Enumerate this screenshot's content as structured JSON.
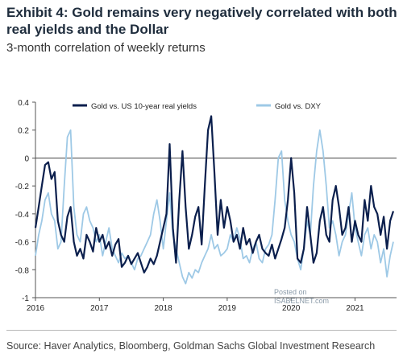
{
  "header": {
    "title": "Exhibit 4: Gold remains very negatively correlated with both real yields and the Dollar",
    "subtitle": "3-month correlation of weekly returns"
  },
  "footer": {
    "source": "Source: Haver Analytics, Bloomberg, Goldman Sachs Global Investment Research"
  },
  "watermark": {
    "line1": "Posted on",
    "line2": "ISABELNET.com"
  },
  "chart_data": {
    "type": "line",
    "title": "",
    "xlabel": "",
    "ylabel": "",
    "xlim": [
      2016.0,
      2021.65
    ],
    "ylim": [
      -1.0,
      0.4
    ],
    "yticks": [
      -1,
      -0.8,
      -0.6,
      -0.4,
      -0.2,
      0,
      0.2,
      0.4
    ],
    "ytick_labels": [
      "-1",
      "-0.8",
      "-0.6",
      "-0.4",
      "-0.2",
      "0",
      "0.2",
      "0.4"
    ],
    "xticks": [
      2016,
      2017,
      2018,
      2019,
      2020,
      2021
    ],
    "xtick_labels": [
      "2016",
      "2017",
      "2018",
      "2019",
      "2020",
      "2021"
    ],
    "zero_line": true,
    "grid": false,
    "legend_position": "top",
    "series": [
      {
        "name": "Gold vs. US 10-year real yields",
        "color": "#0b1f4d",
        "x": [
          2016.0,
          2016.05,
          2016.1,
          2016.15,
          2016.2,
          2016.25,
          2016.3,
          2016.35,
          2016.4,
          2016.45,
          2016.5,
          2016.55,
          2016.6,
          2016.65,
          2016.7,
          2016.75,
          2016.8,
          2016.85,
          2016.9,
          2016.95,
          2017.0,
          2017.05,
          2017.1,
          2017.15,
          2017.2,
          2017.25,
          2017.3,
          2017.35,
          2017.4,
          2017.45,
          2017.5,
          2017.55,
          2017.6,
          2017.65,
          2017.7,
          2017.75,
          2017.8,
          2017.85,
          2017.9,
          2017.95,
          2018.0,
          2018.05,
          2018.1,
          2018.15,
          2018.2,
          2018.25,
          2018.3,
          2018.35,
          2018.4,
          2018.45,
          2018.5,
          2018.55,
          2018.6,
          2018.65,
          2018.7,
          2018.75,
          2018.8,
          2018.85,
          2018.9,
          2018.95,
          2019.0,
          2019.05,
          2019.1,
          2019.15,
          2019.2,
          2019.25,
          2019.3,
          2019.35,
          2019.4,
          2019.45,
          2019.5,
          2019.55,
          2019.6,
          2019.65,
          2019.7,
          2019.75,
          2019.8,
          2019.85,
          2019.9,
          2019.95,
          2020.0,
          2020.05,
          2020.1,
          2020.15,
          2020.2,
          2020.25,
          2020.3,
          2020.35,
          2020.4,
          2020.45,
          2020.5,
          2020.55,
          2020.6,
          2020.65,
          2020.7,
          2020.75,
          2020.8,
          2020.85,
          2020.9,
          2020.95,
          2021.0,
          2021.05,
          2021.1,
          2021.15,
          2021.2,
          2021.25,
          2021.3,
          2021.35,
          2021.4,
          2021.45,
          2021.5,
          2021.55,
          2021.6
        ],
        "y": [
          -0.5,
          -0.35,
          -0.2,
          -0.05,
          -0.03,
          -0.15,
          -0.1,
          -0.45,
          -0.55,
          -0.6,
          -0.42,
          -0.35,
          -0.6,
          -0.7,
          -0.65,
          -0.72,
          -0.55,
          -0.6,
          -0.67,
          -0.5,
          -0.6,
          -0.55,
          -0.65,
          -0.6,
          -0.7,
          -0.62,
          -0.58,
          -0.78,
          -0.75,
          -0.7,
          -0.76,
          -0.72,
          -0.68,
          -0.75,
          -0.82,
          -0.78,
          -0.72,
          -0.76,
          -0.7,
          -0.6,
          -0.5,
          -0.4,
          0.1,
          -0.5,
          -0.75,
          -0.3,
          0.05,
          -0.35,
          -0.65,
          -0.55,
          -0.42,
          -0.35,
          -0.62,
          -0.2,
          0.2,
          0.3,
          -0.1,
          -0.55,
          -0.3,
          -0.5,
          -0.35,
          -0.45,
          -0.6,
          -0.55,
          -0.65,
          -0.5,
          -0.62,
          -0.58,
          -0.68,
          -0.6,
          -0.55,
          -0.65,
          -0.68,
          -0.7,
          -0.62,
          -0.72,
          -0.65,
          -0.58,
          -0.5,
          -0.3,
          0.0,
          -0.25,
          -0.72,
          -0.75,
          -0.65,
          -0.35,
          -0.55,
          -0.75,
          -0.68,
          -0.45,
          -0.35,
          -0.55,
          -0.6,
          -0.3,
          -0.2,
          -0.35,
          -0.55,
          -0.5,
          -0.35,
          -0.6,
          -0.45,
          -0.55,
          -0.6,
          -0.3,
          -0.45,
          -0.2,
          -0.35,
          -0.4,
          -0.55,
          -0.42,
          -0.65,
          -0.45,
          -0.38
        ]
      },
      {
        "name": "Gold vs. DXY",
        "color": "#9ec9e6",
        "x": [
          2016.0,
          2016.05,
          2016.1,
          2016.15,
          2016.2,
          2016.25,
          2016.3,
          2016.35,
          2016.4,
          2016.45,
          2016.5,
          2016.55,
          2016.6,
          2016.65,
          2016.7,
          2016.75,
          2016.8,
          2016.85,
          2016.9,
          2016.95,
          2017.0,
          2017.05,
          2017.1,
          2017.15,
          2017.2,
          2017.25,
          2017.3,
          2017.35,
          2017.4,
          2017.45,
          2017.5,
          2017.55,
          2017.6,
          2017.65,
          2017.7,
          2017.75,
          2017.8,
          2017.85,
          2017.9,
          2017.95,
          2018.0,
          2018.05,
          2018.1,
          2018.15,
          2018.2,
          2018.25,
          2018.3,
          2018.35,
          2018.4,
          2018.45,
          2018.5,
          2018.55,
          2018.6,
          2018.65,
          2018.7,
          2018.75,
          2018.8,
          2018.85,
          2018.9,
          2018.95,
          2019.0,
          2019.05,
          2019.1,
          2019.15,
          2019.2,
          2019.25,
          2019.3,
          2019.35,
          2019.4,
          2019.45,
          2019.5,
          2019.55,
          2019.6,
          2019.65,
          2019.7,
          2019.75,
          2019.8,
          2019.85,
          2019.9,
          2019.95,
          2020.0,
          2020.05,
          2020.1,
          2020.15,
          2020.2,
          2020.25,
          2020.3,
          2020.35,
          2020.4,
          2020.45,
          2020.5,
          2020.55,
          2020.6,
          2020.65,
          2020.7,
          2020.75,
          2020.8,
          2020.85,
          2020.9,
          2020.95,
          2021.0,
          2021.05,
          2021.1,
          2021.15,
          2021.2,
          2021.25,
          2021.3,
          2021.35,
          2021.4,
          2021.45,
          2021.5,
          2021.55,
          2021.6
        ],
        "y": [
          -0.7,
          -0.55,
          -0.45,
          -0.3,
          -0.25,
          -0.4,
          -0.45,
          -0.65,
          -0.6,
          -0.2,
          0.15,
          0.2,
          -0.35,
          -0.55,
          -0.6,
          -0.4,
          -0.35,
          -0.45,
          -0.5,
          -0.6,
          -0.55,
          -0.7,
          -0.6,
          -0.5,
          -0.65,
          -0.7,
          -0.75,
          -0.68,
          -0.72,
          -0.7,
          -0.75,
          -0.8,
          -0.72,
          -0.7,
          -0.65,
          -0.6,
          -0.55,
          -0.4,
          -0.3,
          -0.45,
          -0.65,
          -0.45,
          -0.25,
          -0.55,
          -0.65,
          -0.75,
          -0.85,
          -0.9,
          -0.82,
          -0.86,
          -0.8,
          -0.82,
          -0.75,
          -0.7,
          -0.65,
          -0.55,
          -0.65,
          -0.62,
          -0.7,
          -0.68,
          -0.65,
          -0.55,
          -0.6,
          -0.5,
          -0.58,
          -0.72,
          -0.7,
          -0.75,
          -0.65,
          -0.6,
          -0.72,
          -0.75,
          -0.65,
          -0.62,
          -0.55,
          -0.3,
          0.0,
          0.05,
          -0.3,
          -0.45,
          -0.55,
          -0.6,
          -0.72,
          -0.8,
          -0.65,
          -0.45,
          -0.55,
          -0.2,
          0.05,
          0.2,
          0.05,
          -0.2,
          -0.5,
          -0.45,
          -0.55,
          -0.7,
          -0.6,
          -0.55,
          -0.4,
          -0.25,
          -0.5,
          -0.6,
          -0.7,
          -0.55,
          -0.5,
          -0.65,
          -0.55,
          -0.6,
          -0.75,
          -0.65,
          -0.85,
          -0.7,
          -0.6
        ]
      }
    ]
  }
}
